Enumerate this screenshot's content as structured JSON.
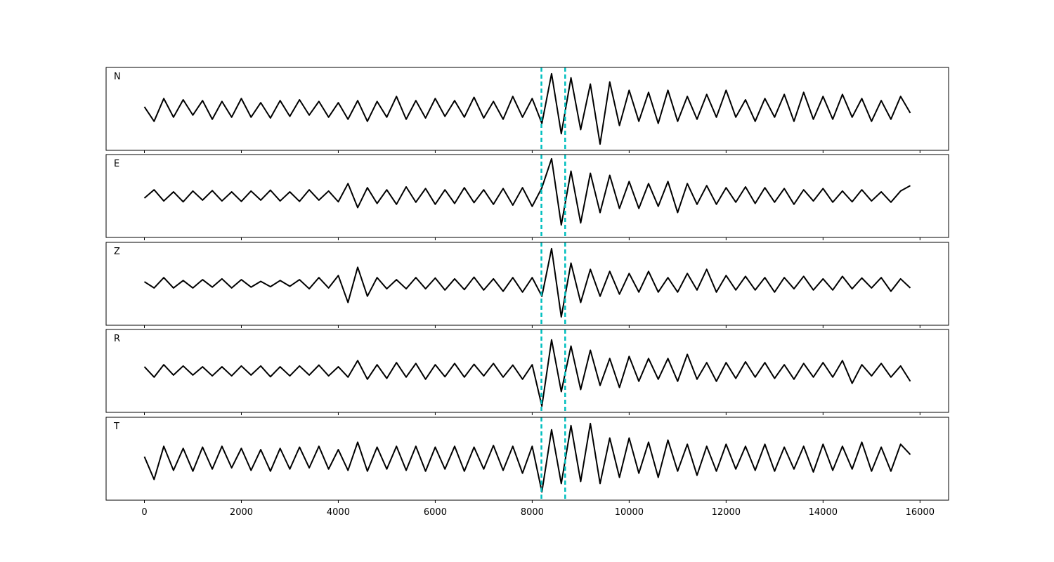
{
  "chart_data": {
    "type": "line",
    "subplots": true,
    "x": [
      0,
      200,
      400,
      600,
      800,
      1000,
      1200,
      1400,
      1600,
      1800,
      2000,
      2200,
      2400,
      2600,
      2800,
      3000,
      3200,
      3400,
      3600,
      3800,
      4000,
      4200,
      4400,
      4600,
      4800,
      5000,
      5200,
      5400,
      5600,
      5800,
      6000,
      6200,
      6400,
      6600,
      6800,
      7000,
      7200,
      7400,
      7600,
      7800,
      8000,
      8200,
      8400,
      8600,
      8800,
      9000,
      9200,
      9400,
      9600,
      9800,
      10000,
      10200,
      10400,
      10600,
      10800,
      11000,
      11200,
      11400,
      11600,
      11800,
      12000,
      12200,
      12400,
      12600,
      12800,
      13000,
      13200,
      13400,
      13600,
      13800,
      14000,
      14200,
      14400,
      14600,
      14800,
      15000,
      15200,
      15400,
      15600,
      15800
    ],
    "xlim": [
      -790,
      16590
    ],
    "xticks": [
      0,
      2000,
      4000,
      6000,
      8000,
      10000,
      12000,
      14000,
      16000
    ],
    "ylim": [
      -1,
      1
    ],
    "vlines": [
      8190,
      8680
    ],
    "vline_color": "#00bfbf",
    "series": [
      {
        "name": "N",
        "color": "#000000",
        "values": [
          0.05,
          -0.3,
          0.25,
          -0.2,
          0.22,
          -0.15,
          0.2,
          -0.25,
          0.18,
          -0.2,
          0.25,
          -0.2,
          0.15,
          -0.22,
          0.2,
          -0.18,
          0.22,
          -0.15,
          0.18,
          -0.2,
          0.15,
          -0.25,
          0.2,
          -0.3,
          0.18,
          -0.2,
          0.3,
          -0.25,
          0.2,
          -0.22,
          0.25,
          -0.18,
          0.2,
          -0.2,
          0.28,
          -0.22,
          0.18,
          -0.25,
          0.3,
          -0.2,
          0.25,
          -0.35,
          0.85,
          -0.6,
          0.75,
          -0.5,
          0.6,
          -0.85,
          0.65,
          -0.4,
          0.45,
          -0.3,
          0.4,
          -0.35,
          0.45,
          -0.3,
          0.3,
          -0.25,
          0.35,
          -0.2,
          0.45,
          -0.2,
          0.22,
          -0.3,
          0.25,
          -0.2,
          0.35,
          -0.3,
          0.4,
          -0.25,
          0.3,
          -0.25,
          0.35,
          -0.2,
          0.25,
          -0.3,
          0.2,
          -0.25,
          0.3,
          -0.1
        ]
      },
      {
        "name": "E",
        "color": "#000000",
        "values": [
          -0.05,
          0.15,
          -0.12,
          0.1,
          -0.14,
          0.12,
          -0.1,
          0.13,
          -0.12,
          0.1,
          -0.13,
          0.12,
          -0.1,
          0.14,
          -0.12,
          0.1,
          -0.13,
          0.15,
          -0.1,
          0.12,
          -0.14,
          0.3,
          -0.28,
          0.2,
          -0.18,
          0.15,
          -0.2,
          0.22,
          -0.15,
          0.18,
          -0.2,
          0.15,
          -0.18,
          0.2,
          -0.16,
          0.15,
          -0.2,
          0.18,
          -0.22,
          0.2,
          -0.25,
          0.2,
          0.9,
          -0.7,
          0.6,
          -0.65,
          0.55,
          -0.4,
          0.5,
          -0.3,
          0.35,
          -0.3,
          0.3,
          -0.25,
          0.35,
          -0.4,
          0.3,
          -0.2,
          0.25,
          -0.2,
          0.2,
          -0.15,
          0.22,
          -0.18,
          0.2,
          -0.15,
          0.18,
          -0.2,
          0.15,
          -0.12,
          0.18,
          -0.15,
          0.12,
          -0.14,
          0.15,
          -0.12,
          0.1,
          -0.15,
          0.12,
          0.25
        ]
      },
      {
        "name": "Z",
        "color": "#000000",
        "values": [
          0.05,
          -0.1,
          0.15,
          -0.1,
          0.08,
          -0.1,
          0.1,
          -0.08,
          0.12,
          -0.1,
          0.1,
          -0.08,
          0.06,
          -0.07,
          0.08,
          -0.06,
          0.1,
          -0.12,
          0.15,
          -0.1,
          0.2,
          -0.45,
          0.4,
          -0.3,
          0.15,
          -0.12,
          0.1,
          -0.12,
          0.15,
          -0.12,
          0.14,
          -0.15,
          0.12,
          -0.14,
          0.16,
          -0.15,
          0.12,
          -0.18,
          0.15,
          -0.2,
          0.15,
          -0.3,
          0.85,
          -0.8,
          0.5,
          -0.45,
          0.35,
          -0.3,
          0.3,
          -0.25,
          0.25,
          -0.2,
          0.3,
          -0.2,
          0.15,
          -0.2,
          0.25,
          -0.15,
          0.35,
          -0.2,
          0.2,
          -0.15,
          0.18,
          -0.15,
          0.15,
          -0.2,
          0.15,
          -0.12,
          0.18,
          -0.15,
          0.12,
          -0.15,
          0.18,
          -0.12,
          0.14,
          -0.1,
          0.15,
          -0.18,
          0.12,
          -0.1
        ]
      },
      {
        "name": "R",
        "color": "#000000",
        "values": [
          0.1,
          -0.15,
          0.15,
          -0.1,
          0.12,
          -0.1,
          0.1,
          -0.12,
          0.1,
          -0.12,
          0.12,
          -0.1,
          0.12,
          -0.14,
          0.1,
          -0.12,
          0.12,
          -0.1,
          0.14,
          -0.12,
          0.1,
          -0.15,
          0.25,
          -0.2,
          0.15,
          -0.18,
          0.2,
          -0.15,
          0.18,
          -0.2,
          0.15,
          -0.14,
          0.18,
          -0.15,
          0.16,
          -0.12,
          0.18,
          -0.15,
          0.14,
          -0.2,
          0.15,
          -0.85,
          0.75,
          -0.5,
          0.6,
          -0.45,
          0.5,
          -0.35,
          0.3,
          -0.4,
          0.35,
          -0.25,
          0.3,
          -0.2,
          0.3,
          -0.25,
          0.4,
          -0.2,
          0.2,
          -0.25,
          0.2,
          -0.18,
          0.22,
          -0.15,
          0.2,
          -0.18,
          0.15,
          -0.2,
          0.18,
          -0.15,
          0.2,
          -0.15,
          0.25,
          -0.3,
          0.15,
          -0.12,
          0.18,
          -0.15,
          0.12,
          -0.25
        ]
      },
      {
        "name": "T",
        "color": "#000000",
        "values": [
          0.05,
          -0.5,
          0.3,
          -0.28,
          0.25,
          -0.3,
          0.28,
          -0.25,
          0.3,
          -0.22,
          0.25,
          -0.28,
          0.22,
          -0.3,
          0.25,
          -0.25,
          0.28,
          -0.22,
          0.3,
          -0.25,
          0.22,
          -0.28,
          0.4,
          -0.3,
          0.28,
          -0.25,
          0.3,
          -0.28,
          0.3,
          -0.3,
          0.28,
          -0.25,
          0.3,
          -0.3,
          0.28,
          -0.25,
          0.32,
          -0.28,
          0.3,
          -0.35,
          0.3,
          -0.8,
          0.7,
          -0.6,
          0.8,
          -0.55,
          0.85,
          -0.6,
          0.5,
          -0.45,
          0.5,
          -0.35,
          0.4,
          -0.45,
          0.45,
          -0.3,
          0.35,
          -0.4,
          0.3,
          -0.3,
          0.35,
          -0.25,
          0.3,
          -0.28,
          0.35,
          -0.3,
          0.28,
          -0.25,
          0.3,
          -0.32,
          0.35,
          -0.28,
          0.3,
          -0.25,
          0.4,
          -0.3,
          0.28,
          -0.3,
          0.35,
          0.1
        ]
      }
    ]
  }
}
